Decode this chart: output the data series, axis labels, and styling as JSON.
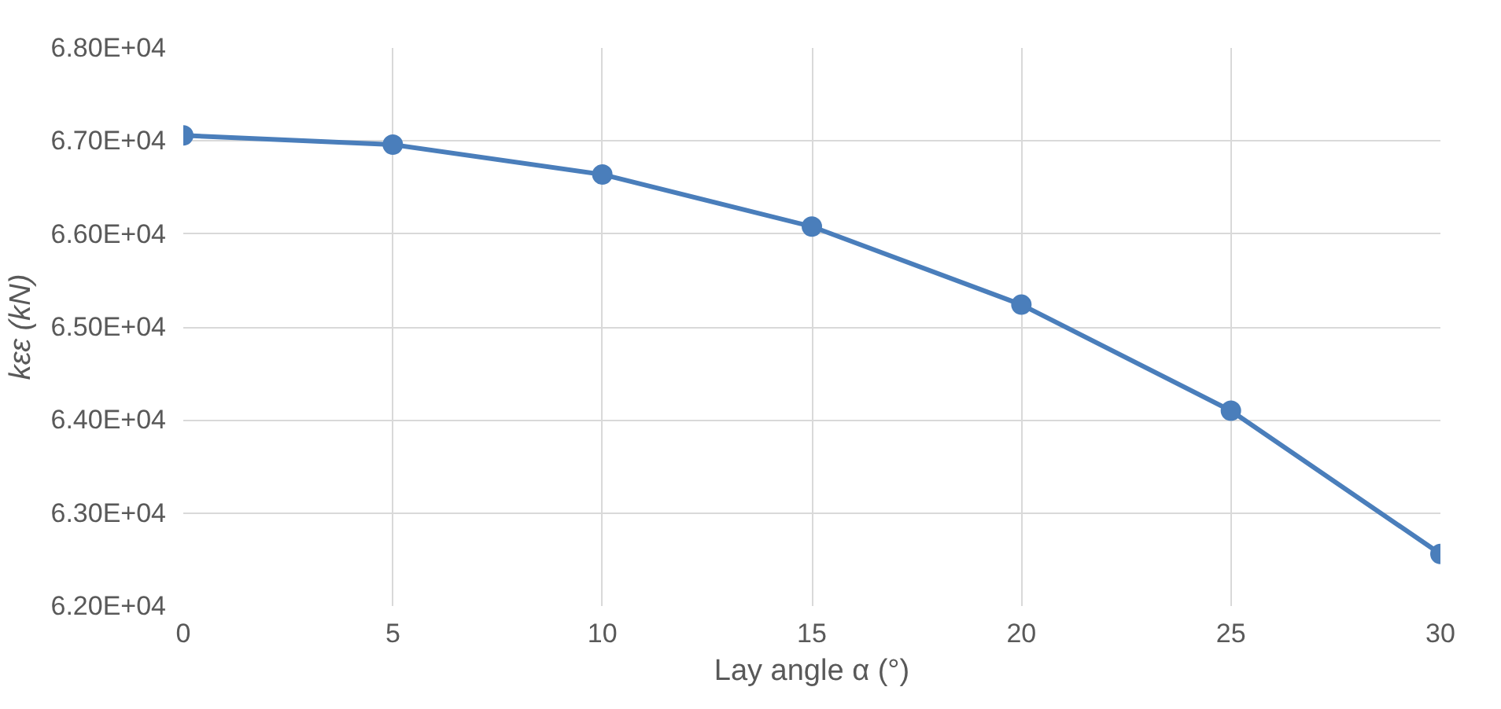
{
  "chart_data": {
    "type": "line",
    "xlabel": "Lay angle α (°)",
    "ylabel": "kεε (kN)",
    "x": [
      0,
      5,
      10,
      15,
      20,
      25,
      30
    ],
    "series": [
      {
        "color": "#4a7ebb",
        "values": [
          67060,
          66960,
          66640,
          66080,
          65240,
          64100,
          62560
        ]
      }
    ],
    "xlim": [
      0,
      30
    ],
    "xticks": [
      0,
      5,
      10,
      15,
      20,
      25,
      30
    ],
    "ylim": [
      62000,
      68000
    ],
    "yticks": [
      {
        "value": 62000,
        "label": "6.20E+04"
      },
      {
        "value": 63000,
        "label": "6.30E+04"
      },
      {
        "value": 64000,
        "label": "6.40E+04"
      },
      {
        "value": 65000,
        "label": "6.50E+04"
      },
      {
        "value": 66000,
        "label": "6.60E+04"
      },
      {
        "value": 67000,
        "label": "6.70E+04"
      },
      {
        "value": 68000,
        "label": "6.80E+04"
      }
    ],
    "grid": true,
    "marker": "circle",
    "line_style": "solid"
  }
}
